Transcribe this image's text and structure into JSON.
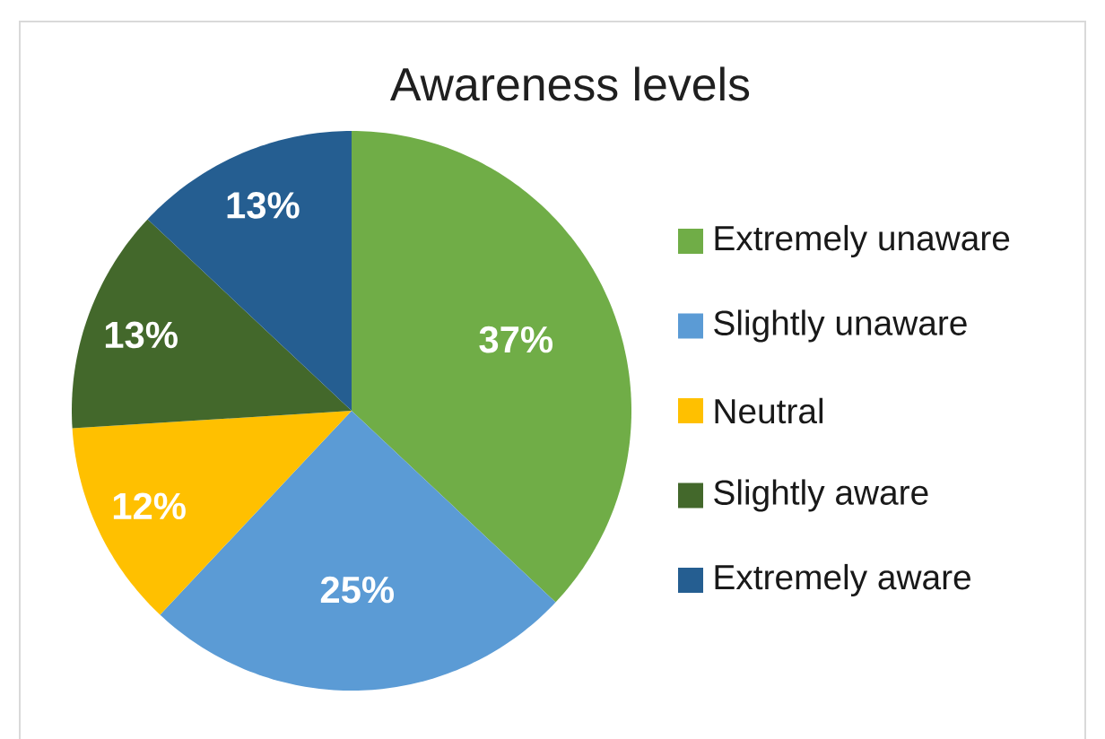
{
  "chart_data": {
    "type": "pie",
    "title": "Awareness levels",
    "categories": [
      "Extremely unaware",
      "Slightly unaware",
      "Neutral",
      "Slightly aware",
      "Extremely aware"
    ],
    "values": [
      37,
      25,
      12,
      13,
      13
    ],
    "colors": [
      "#70ad47",
      "#5b9bd5",
      "#ffc000",
      "#43682b",
      "#255e91"
    ],
    "value_labels": [
      "37%",
      "25%",
      "12%",
      "13%",
      "13%"
    ],
    "legend": "right"
  }
}
